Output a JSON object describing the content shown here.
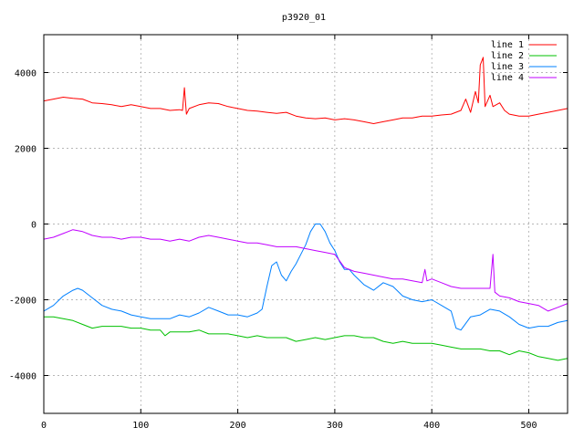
{
  "chart_data": {
    "type": "line",
    "title": "p3920_01",
    "xlabel": "",
    "ylabel": "",
    "xlim": [
      0,
      540
    ],
    "ylim": [
      -5000,
      5000
    ],
    "x_ticks": [
      0,
      100,
      200,
      300,
      400,
      500
    ],
    "y_ticks": [
      -4000,
      -2000,
      0,
      2000,
      4000
    ],
    "grid": true,
    "legend_position": "top-right",
    "series": [
      {
        "name": "line 1",
        "color": "#ff0000",
        "points": [
          [
            0,
            3250
          ],
          [
            10,
            3300
          ],
          [
            20,
            3350
          ],
          [
            30,
            3320
          ],
          [
            40,
            3300
          ],
          [
            50,
            3200
          ],
          [
            60,
            3180
          ],
          [
            70,
            3150
          ],
          [
            80,
            3100
          ],
          [
            90,
            3150
          ],
          [
            100,
            3100
          ],
          [
            110,
            3050
          ],
          [
            120,
            3050
          ],
          [
            130,
            3000
          ],
          [
            140,
            3020
          ],
          [
            143,
            3000
          ],
          [
            145,
            3600
          ],
          [
            147,
            2900
          ],
          [
            150,
            3050
          ],
          [
            160,
            3150
          ],
          [
            170,
            3200
          ],
          [
            180,
            3180
          ],
          [
            190,
            3100
          ],
          [
            200,
            3050
          ],
          [
            210,
            3000
          ],
          [
            220,
            2980
          ],
          [
            230,
            2950
          ],
          [
            240,
            2920
          ],
          [
            250,
            2950
          ],
          [
            260,
            2850
          ],
          [
            270,
            2800
          ],
          [
            280,
            2780
          ],
          [
            290,
            2800
          ],
          [
            300,
            2750
          ],
          [
            310,
            2780
          ],
          [
            320,
            2750
          ],
          [
            330,
            2700
          ],
          [
            340,
            2650
          ],
          [
            350,
            2700
          ],
          [
            360,
            2750
          ],
          [
            370,
            2800
          ],
          [
            380,
            2800
          ],
          [
            390,
            2850
          ],
          [
            400,
            2850
          ],
          [
            410,
            2880
          ],
          [
            420,
            2900
          ],
          [
            430,
            3000
          ],
          [
            435,
            3300
          ],
          [
            440,
            2950
          ],
          [
            445,
            3500
          ],
          [
            448,
            3200
          ],
          [
            450,
            4200
          ],
          [
            453,
            4400
          ],
          [
            455,
            3100
          ],
          [
            460,
            3400
          ],
          [
            463,
            3100
          ],
          [
            470,
            3200
          ],
          [
            475,
            3000
          ],
          [
            480,
            2900
          ],
          [
            490,
            2850
          ],
          [
            500,
            2850
          ],
          [
            510,
            2900
          ],
          [
            520,
            2950
          ],
          [
            530,
            3000
          ],
          [
            540,
            3050
          ]
        ]
      },
      {
        "name": "line 2",
        "color": "#00c000",
        "points": [
          [
            0,
            -2450
          ],
          [
            10,
            -2450
          ],
          [
            20,
            -2500
          ],
          [
            30,
            -2550
          ],
          [
            40,
            -2650
          ],
          [
            50,
            -2750
          ],
          [
            60,
            -2700
          ],
          [
            70,
            -2700
          ],
          [
            80,
            -2700
          ],
          [
            90,
            -2750
          ],
          [
            100,
            -2750
          ],
          [
            110,
            -2800
          ],
          [
            120,
            -2800
          ],
          [
            125,
            -2950
          ],
          [
            130,
            -2850
          ],
          [
            140,
            -2850
          ],
          [
            150,
            -2850
          ],
          [
            160,
            -2800
          ],
          [
            170,
            -2900
          ],
          [
            180,
            -2900
          ],
          [
            190,
            -2900
          ],
          [
            200,
            -2950
          ],
          [
            210,
            -3000
          ],
          [
            220,
            -2950
          ],
          [
            230,
            -3000
          ],
          [
            240,
            -3000
          ],
          [
            250,
            -3000
          ],
          [
            260,
            -3100
          ],
          [
            270,
            -3050
          ],
          [
            280,
            -3000
          ],
          [
            290,
            -3050
          ],
          [
            300,
            -3000
          ],
          [
            310,
            -2950
          ],
          [
            320,
            -2950
          ],
          [
            330,
            -3000
          ],
          [
            340,
            -3000
          ],
          [
            350,
            -3100
          ],
          [
            360,
            -3150
          ],
          [
            370,
            -3100
          ],
          [
            380,
            -3150
          ],
          [
            390,
            -3150
          ],
          [
            400,
            -3150
          ],
          [
            410,
            -3200
          ],
          [
            420,
            -3250
          ],
          [
            430,
            -3300
          ],
          [
            440,
            -3300
          ],
          [
            450,
            -3300
          ],
          [
            460,
            -3350
          ],
          [
            470,
            -3350
          ],
          [
            480,
            -3450
          ],
          [
            490,
            -3350
          ],
          [
            500,
            -3400
          ],
          [
            510,
            -3500
          ],
          [
            520,
            -3550
          ],
          [
            530,
            -3600
          ],
          [
            540,
            -3550
          ]
        ]
      },
      {
        "name": "line 3",
        "color": "#0080ff",
        "points": [
          [
            0,
            -2300
          ],
          [
            10,
            -2150
          ],
          [
            20,
            -1900
          ],
          [
            30,
            -1750
          ],
          [
            35,
            -1700
          ],
          [
            40,
            -1750
          ],
          [
            50,
            -1950
          ],
          [
            60,
            -2150
          ],
          [
            70,
            -2250
          ],
          [
            80,
            -2300
          ],
          [
            90,
            -2400
          ],
          [
            100,
            -2450
          ],
          [
            110,
            -2500
          ],
          [
            120,
            -2500
          ],
          [
            130,
            -2500
          ],
          [
            140,
            -2400
          ],
          [
            150,
            -2450
          ],
          [
            160,
            -2350
          ],
          [
            170,
            -2200
          ],
          [
            180,
            -2300
          ],
          [
            190,
            -2400
          ],
          [
            200,
            -2400
          ],
          [
            210,
            -2450
          ],
          [
            220,
            -2350
          ],
          [
            225,
            -2250
          ],
          [
            230,
            -1650
          ],
          [
            235,
            -1100
          ],
          [
            240,
            -1000
          ],
          [
            245,
            -1350
          ],
          [
            250,
            -1500
          ],
          [
            255,
            -1250
          ],
          [
            260,
            -1050
          ],
          [
            265,
            -800
          ],
          [
            270,
            -550
          ],
          [
            275,
            -200
          ],
          [
            280,
            0
          ],
          [
            285,
            0
          ],
          [
            290,
            -200
          ],
          [
            295,
            -500
          ],
          [
            300,
            -700
          ],
          [
            305,
            -1000
          ],
          [
            310,
            -1200
          ],
          [
            315,
            -1200
          ],
          [
            320,
            -1350
          ],
          [
            330,
            -1600
          ],
          [
            340,
            -1750
          ],
          [
            350,
            -1550
          ],
          [
            360,
            -1650
          ],
          [
            370,
            -1900
          ],
          [
            380,
            -2000
          ],
          [
            390,
            -2050
          ],
          [
            400,
            -2000
          ],
          [
            410,
            -2150
          ],
          [
            420,
            -2300
          ],
          [
            425,
            -2750
          ],
          [
            430,
            -2800
          ],
          [
            440,
            -2450
          ],
          [
            450,
            -2400
          ],
          [
            460,
            -2250
          ],
          [
            470,
            -2300
          ],
          [
            480,
            -2450
          ],
          [
            490,
            -2650
          ],
          [
            500,
            -2750
          ],
          [
            510,
            -2700
          ],
          [
            520,
            -2700
          ],
          [
            530,
            -2600
          ],
          [
            540,
            -2550
          ]
        ]
      },
      {
        "name": "line 4",
        "color": "#c000ff",
        "points": [
          [
            0,
            -400
          ],
          [
            10,
            -350
          ],
          [
            20,
            -250
          ],
          [
            30,
            -150
          ],
          [
            40,
            -200
          ],
          [
            50,
            -300
          ],
          [
            60,
            -350
          ],
          [
            70,
            -350
          ],
          [
            80,
            -400
          ],
          [
            90,
            -350
          ],
          [
            100,
            -350
          ],
          [
            110,
            -400
          ],
          [
            120,
            -400
          ],
          [
            130,
            -450
          ],
          [
            140,
            -400
          ],
          [
            150,
            -450
          ],
          [
            160,
            -350
          ],
          [
            170,
            -300
          ],
          [
            180,
            -350
          ],
          [
            190,
            -400
          ],
          [
            200,
            -450
          ],
          [
            210,
            -500
          ],
          [
            220,
            -500
          ],
          [
            230,
            -550
          ],
          [
            240,
            -600
          ],
          [
            250,
            -600
          ],
          [
            260,
            -600
          ],
          [
            270,
            -650
          ],
          [
            280,
            -700
          ],
          [
            290,
            -750
          ],
          [
            300,
            -800
          ],
          [
            310,
            -1150
          ],
          [
            320,
            -1250
          ],
          [
            330,
            -1300
          ],
          [
            340,
            -1350
          ],
          [
            350,
            -1400
          ],
          [
            360,
            -1450
          ],
          [
            370,
            -1450
          ],
          [
            380,
            -1500
          ],
          [
            390,
            -1550
          ],
          [
            393,
            -1200
          ],
          [
            395,
            -1500
          ],
          [
            400,
            -1450
          ],
          [
            410,
            -1550
          ],
          [
            420,
            -1650
          ],
          [
            430,
            -1700
          ],
          [
            440,
            -1700
          ],
          [
            450,
            -1700
          ],
          [
            460,
            -1700
          ],
          [
            463,
            -800
          ],
          [
            465,
            -1800
          ],
          [
            470,
            -1900
          ],
          [
            480,
            -1950
          ],
          [
            490,
            -2050
          ],
          [
            500,
            -2100
          ],
          [
            510,
            -2150
          ],
          [
            520,
            -2300
          ],
          [
            530,
            -2200
          ],
          [
            540,
            -2100
          ]
        ]
      }
    ]
  }
}
